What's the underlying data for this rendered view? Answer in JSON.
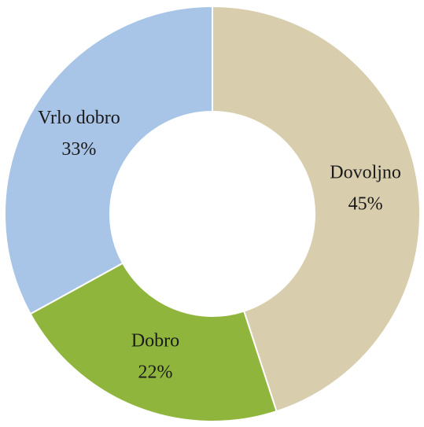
{
  "chart_data": {
    "type": "pie",
    "categories": [
      "Dovoljno",
      "Dobro",
      "Vrlo dobro"
    ],
    "values": [
      45,
      22,
      33
    ],
    "value_labels": [
      "45%",
      "22%",
      "33%"
    ],
    "colors": [
      "#d8ceae",
      "#8fb53c",
      "#a8c4e6"
    ]
  }
}
